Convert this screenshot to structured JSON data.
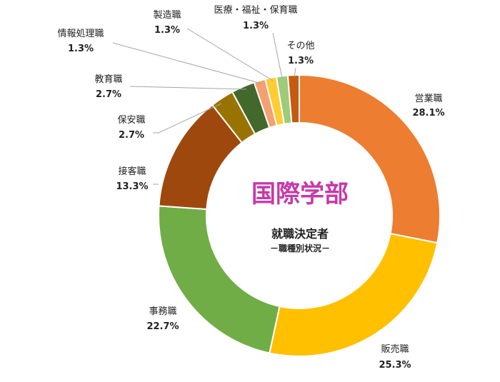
{
  "chart_data": {
    "type": "pie",
    "variant": "donut",
    "title": "国際学部",
    "subtitle": "就職決定者",
    "subtitle2": "－職種別状況－",
    "title_color": "#c63aa8",
    "slices": [
      {
        "label": "営業職",
        "value": 28.1,
        "value_text": "28.1%",
        "color": "#ed7d31"
      },
      {
        "label": "販売職",
        "value": 25.3,
        "value_text": "25.3%",
        "color": "#ffc000"
      },
      {
        "label": "事務職",
        "value": 22.7,
        "value_text": "22.7%",
        "color": "#70ad47"
      },
      {
        "label": "接客職",
        "value": 13.3,
        "value_text": "13.3%",
        "color": "#9e480e"
      },
      {
        "label": "保安職",
        "value": 2.7,
        "value_text": "2.7%",
        "color": "#997300"
      },
      {
        "label": "教育職",
        "value": 2.7,
        "value_text": "2.7%",
        "color": "#43682b"
      },
      {
        "label": "情報処理職",
        "value": 1.3,
        "value_text": "1.3%",
        "color": "#f4a071"
      },
      {
        "label": "製造職",
        "value": 1.3,
        "value_text": "1.3%",
        "color": "#ffcd33"
      },
      {
        "label": "医療・福祉・保育職",
        "value": 1.3,
        "value_text": "1.3%",
        "color": "#9dcb7a"
      },
      {
        "label": "その他",
        "value": 1.3,
        "value_text": "1.3%",
        "color": "#c55a11"
      }
    ]
  }
}
